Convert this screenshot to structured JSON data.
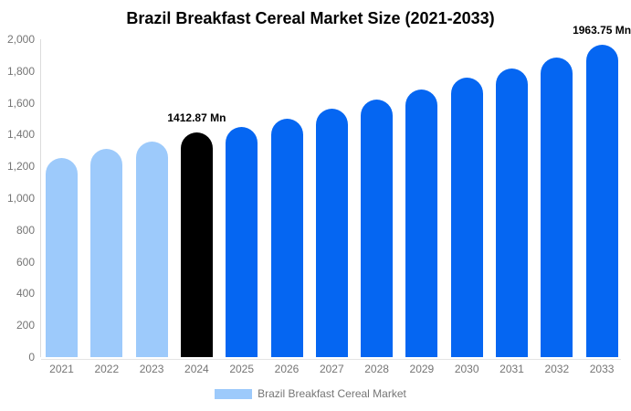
{
  "chart_data": {
    "type": "bar",
    "title": "Brazil Breakfast Cereal Market Size (2021-2033)",
    "unit": "Mn",
    "categories": [
      "2021",
      "2022",
      "2023",
      "2024",
      "2025",
      "2026",
      "2027",
      "2028",
      "2029",
      "2030",
      "2031",
      "2032",
      "2033"
    ],
    "series": [
      {
        "name": "Brazil Breakfast Cereal Market",
        "values": [
          1255,
          1313,
          1356,
          1412.87,
          1450,
          1501,
          1564,
          1622,
          1686,
          1756,
          1815,
          1886,
          1963.75
        ]
      }
    ],
    "ylim": [
      0,
      2000
    ],
    "yticks": [
      {
        "value": 0,
        "label": "0"
      },
      {
        "value": 200,
        "label": "200"
      },
      {
        "value": 400,
        "label": "400"
      },
      {
        "value": 600,
        "label": "600"
      },
      {
        "value": 800,
        "label": "800"
      },
      {
        "value": 1000,
        "label": "1,000"
      },
      {
        "value": 1200,
        "label": "1,200"
      },
      {
        "value": 1400,
        "label": "1,400"
      },
      {
        "value": 1600,
        "label": "1,600"
      },
      {
        "value": 1800,
        "label": "1,800"
      },
      {
        "value": 2000,
        "label": "2,000"
      }
    ],
    "grid": false,
    "legend_position": "bottom",
    "data_labels": [
      {
        "category": "2024",
        "text": "1412.87 Mn"
      },
      {
        "category": "2033",
        "text": "1963.75 Mn"
      }
    ],
    "bar_color_keys": [
      "historical",
      "historical",
      "historical",
      "highlight",
      "forecast",
      "forecast",
      "forecast",
      "forecast",
      "forecast",
      "forecast",
      "forecast",
      "forecast",
      "forecast"
    ]
  },
  "palette": {
    "historical": "#9DCAFB",
    "highlight": "#000000",
    "forecast": "#0566F2"
  },
  "axis": {
    "line_color": "#DCDCDC",
    "tick_text_color": "#757575"
  },
  "legend": {
    "label": "Brazil Breakfast Cereal Market",
    "swatch_color": "#9DCAFB"
  }
}
